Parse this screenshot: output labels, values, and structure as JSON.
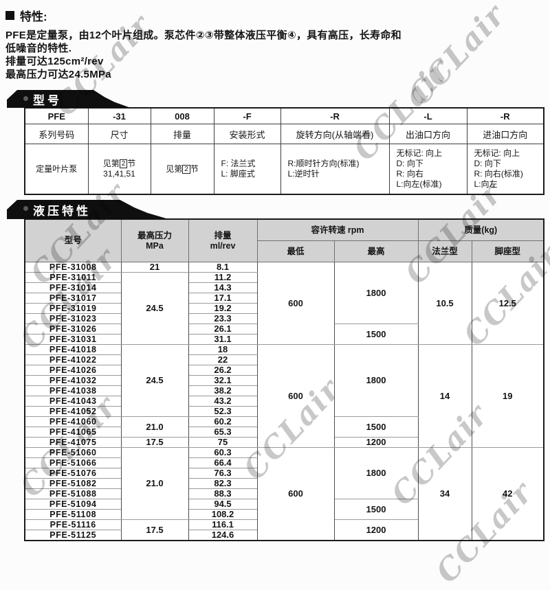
{
  "features": {
    "heading": "特性:",
    "lines": [
      "PFE是定量泵，由12个叶片组成。泵芯件②③带整体液压平衡④，具有高压，长寿命和",
      "低噪音的特性.",
      "排量可达125cm²/rev",
      "最高压力可达24.5MPa"
    ]
  },
  "model_section": {
    "banner": "型号",
    "table": {
      "rows": [
        [
          {
            "t": "PFE",
            "c": "code"
          },
          {
            "t": "-31",
            "c": "code"
          },
          {
            "t": "008",
            "c": "code"
          },
          {
            "t": "-F",
            "c": "code"
          },
          {
            "t": "-R",
            "c": "code"
          },
          {
            "t": "-L",
            "c": "code"
          },
          {
            "t": "-R",
            "c": "code"
          }
        ],
        [
          {
            "t": "系列号码",
            "c": "lbl"
          },
          {
            "t": "尺寸",
            "c": "lbl"
          },
          {
            "t": "排量",
            "c": "lbl"
          },
          {
            "t": "安装形式",
            "c": "lbl"
          },
          {
            "t": "旋转方向(从轴端看)",
            "c": "lbl"
          },
          {
            "t": "出油口方向",
            "c": "lbl"
          },
          {
            "t": "进油口方向",
            "c": "lbl"
          }
        ],
        [
          {
            "t": "定量叶片泵",
            "c": "desc"
          },
          {
            "t": "见第[2]节\n31,41,51",
            "c": "desc"
          },
          {
            "t": "见第[2]节",
            "c": "desc"
          },
          {
            "t": "F: 法兰式\nL: 脚座式",
            "c": "desc left"
          },
          {
            "t": "R:顺时针方向(标准)\nL:逆时针",
            "c": "desc left"
          },
          {
            "t": "无标记: 向上\nD: 向下\nR: 向右\nL:向左(标准)",
            "c": "desc left"
          },
          {
            "t": "无标记: 向上\nD: 向下\nR: 向右(标准)\nL:向左",
            "c": "desc left"
          }
        ]
      ]
    }
  },
  "hydraulic_section": {
    "banner": "液压特性",
    "table": {
      "rows": [
        [
          {
            "t": "型号",
            "rs": 2,
            "c": "hdr"
          },
          {
            "t": "最高压力\nMPa",
            "rs": 2,
            "c": "hdr"
          },
          {
            "t": "排量\nml/rev",
            "rs": 2,
            "c": "hdr"
          },
          {
            "t": "容许转速  rpm",
            "cs": 2,
            "c": "hdr"
          },
          {
            "t": "质量(kg)",
            "cs": 2,
            "c": "hdr"
          }
        ],
        [
          {
            "t": "最低",
            "c": "hdr"
          },
          {
            "t": "最高",
            "c": "hdr"
          },
          {
            "t": "法兰型",
            "c": "hdr"
          },
          {
            "t": "脚座型",
            "c": "hdr"
          }
        ],
        [
          {
            "t": "PFE-31008",
            "c": "model"
          },
          {
            "t": "21",
            "c": "num"
          },
          {
            "t": "8.1",
            "c": "num"
          },
          {
            "t": "600",
            "rs": 8,
            "c": "num"
          },
          {
            "t": "1800",
            "rs": 6,
            "c": "num"
          },
          {
            "t": "10.5",
            "rs": 8,
            "c": "num"
          },
          {
            "t": "12.5",
            "rs": 8,
            "c": "num"
          }
        ],
        [
          {
            "t": "PFE-31011",
            "c": "model"
          },
          {
            "t": "24.5",
            "rs": 7,
            "c": "num"
          },
          {
            "t": "11.2",
            "c": "num"
          }
        ],
        [
          {
            "t": "PFE-31014",
            "c": "model"
          },
          {
            "t": "14.3",
            "c": "num"
          }
        ],
        [
          {
            "t": "PFE-31017",
            "c": "model"
          },
          {
            "t": "17.1",
            "c": "num"
          }
        ],
        [
          {
            "t": "PFE-31019",
            "c": "model"
          },
          {
            "t": "19.2",
            "c": "num"
          }
        ],
        [
          {
            "t": "PFE-31023",
            "c": "model"
          },
          {
            "t": "23.3",
            "c": "num"
          }
        ],
        [
          {
            "t": "PFE-31026",
            "c": "model"
          },
          {
            "t": "26.1",
            "c": "num"
          },
          {
            "t": "1500",
            "rs": 2,
            "c": "num"
          }
        ],
        [
          {
            "t": "PFE-31031",
            "c": "model"
          },
          {
            "t": "31.1",
            "c": "num"
          }
        ],
        [
          {
            "t": "PFE-41018",
            "c": "model gs"
          },
          {
            "t": "24.5",
            "rs": 7,
            "c": "num gs"
          },
          {
            "t": "18",
            "c": "num gs"
          },
          {
            "t": "600",
            "rs": 10,
            "c": "num gs"
          },
          {
            "t": "1800",
            "rs": 7,
            "c": "num gs"
          },
          {
            "t": "14",
            "rs": 10,
            "c": "num gs"
          },
          {
            "t": "19",
            "rs": 10,
            "c": "num gs"
          }
        ],
        [
          {
            "t": "PFE-41022",
            "c": "model"
          },
          {
            "t": "22",
            "c": "num"
          }
        ],
        [
          {
            "t": "PFE-41026",
            "c": "model"
          },
          {
            "t": "26.2",
            "c": "num"
          }
        ],
        [
          {
            "t": "PFE-41032",
            "c": "model"
          },
          {
            "t": "32.1",
            "c": "num"
          }
        ],
        [
          {
            "t": "PFE-41038",
            "c": "model"
          },
          {
            "t": "38.2",
            "c": "num"
          }
        ],
        [
          {
            "t": "PFE-41043",
            "c": "model"
          },
          {
            "t": "43.2",
            "c": "num"
          }
        ],
        [
          {
            "t": "PFE-41052",
            "c": "model"
          },
          {
            "t": "52.3",
            "c": "num"
          }
        ],
        [
          {
            "t": "PFE-41060",
            "c": "model"
          },
          {
            "t": "21.0",
            "rs": 2,
            "c": "num"
          },
          {
            "t": "60.2",
            "c": "num"
          },
          {
            "t": "1500",
            "rs": 2,
            "c": "num"
          }
        ],
        [
          {
            "t": "PFE-41065",
            "c": "model"
          },
          {
            "t": "65.3",
            "c": "num"
          }
        ],
        [
          {
            "t": "PFE-41075",
            "c": "model"
          },
          {
            "t": "17.5",
            "c": "num"
          },
          {
            "t": "75",
            "c": "num"
          },
          {
            "t": "1200",
            "c": "num"
          }
        ],
        [
          {
            "t": "PFE-51060",
            "c": "model gs"
          },
          {
            "t": "21.0",
            "rs": 7,
            "c": "num gs"
          },
          {
            "t": "60.3",
            "c": "num gs"
          },
          {
            "t": "600",
            "rs": 9,
            "c": "num gs"
          },
          {
            "t": "1800",
            "rs": 5,
            "c": "num gs"
          },
          {
            "t": "34",
            "rs": 9,
            "c": "num gs"
          },
          {
            "t": "42",
            "rs": 9,
            "c": "num gs"
          }
        ],
        [
          {
            "t": "PFE-51066",
            "c": "model"
          },
          {
            "t": "66.4",
            "c": "num"
          }
        ],
        [
          {
            "t": "PFE-51076",
            "c": "model"
          },
          {
            "t": "76.3",
            "c": "num"
          }
        ],
        [
          {
            "t": "PFE-51082",
            "c": "model"
          },
          {
            "t": "82.3",
            "c": "num"
          }
        ],
        [
          {
            "t": "PFE-51088",
            "c": "model"
          },
          {
            "t": "88.3",
            "c": "num"
          }
        ],
        [
          {
            "t": "PFE-51094",
            "c": "model"
          },
          {
            "t": "94.5",
            "c": "num"
          },
          {
            "t": "1500",
            "rs": 2,
            "c": "num"
          }
        ],
        [
          {
            "t": "PFE-51108",
            "c": "model"
          },
          {
            "t": "108.2",
            "c": "num"
          }
        ],
        [
          {
            "t": "PFE-51116",
            "c": "model"
          },
          {
            "t": "17.5",
            "rs": 2,
            "c": "num"
          },
          {
            "t": "116.1",
            "c": "num"
          },
          {
            "t": "1200",
            "rs": 2,
            "c": "num"
          }
        ],
        [
          {
            "t": "PFE-51125",
            "c": "model"
          },
          {
            "t": "124.6",
            "c": "num"
          }
        ]
      ]
    }
  },
  "watermark": {
    "text": "CCLair"
  },
  "colors": {
    "banner_bg": "#0f0f0f",
    "header_bg": "#d2d2d2",
    "watermark": "#c8c8c8"
  }
}
